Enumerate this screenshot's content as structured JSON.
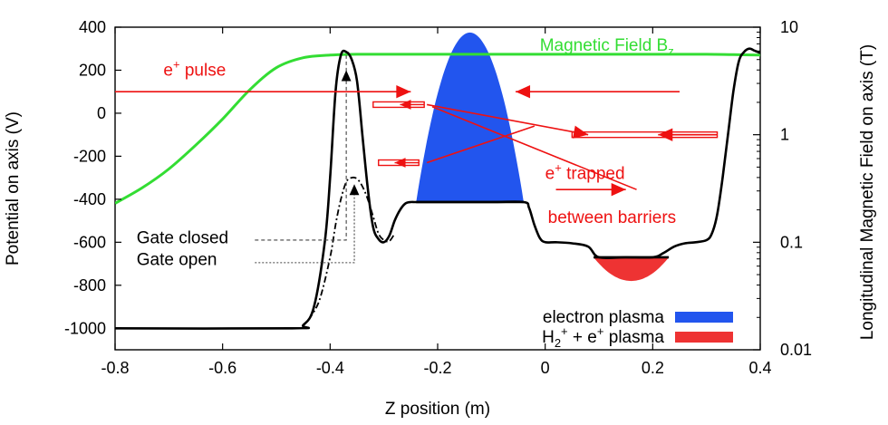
{
  "chart_data": {
    "type": "line",
    "xlabel": "Z position (m)",
    "ylabel": "Potential on axis (V)",
    "y2label": "Longitudinal Magnetic Field on axis (T)",
    "xlim": [
      -0.8,
      0.4
    ],
    "ylim": [
      -1100,
      400
    ],
    "y2lim": [
      0.01,
      10
    ],
    "y2scale": "log",
    "x_ticks": [
      -0.8,
      -0.6,
      -0.4,
      -0.2,
      0,
      0.2,
      0.4
    ],
    "x_tick_labels": [
      "-0.8",
      "-0.6",
      "-0.4",
      "-0.2",
      "0",
      "0.2",
      "0.4"
    ],
    "y_ticks": [
      400,
      200,
      0,
      -200,
      -400,
      -600,
      -800,
      -1000
    ],
    "y_tick_labels": [
      "400",
      "200",
      "0",
      "-200",
      "-400",
      "-600",
      "-800",
      "-1000"
    ],
    "y2_ticks": [
      10,
      1,
      0.1,
      0.01
    ],
    "y2_tick_labels": [
      "10",
      "1",
      "0.1",
      "0.01"
    ],
    "series": [
      {
        "name": "Potential (gate closed)",
        "color": "#000000",
        "style": "solid",
        "x": [
          -0.8,
          -0.47,
          -0.45,
          -0.43,
          -0.41,
          -0.4,
          -0.39,
          -0.38,
          -0.37,
          -0.36,
          -0.35,
          -0.34,
          -0.33,
          -0.32,
          -0.31,
          -0.3,
          -0.29,
          -0.28,
          -0.27,
          -0.26,
          -0.25,
          -0.24,
          -0.2,
          -0.1,
          -0.04,
          -0.03,
          -0.02,
          -0.01,
          0.0,
          0.02,
          0.05,
          0.08,
          0.1,
          0.15,
          0.2,
          0.22,
          0.24,
          0.26,
          0.28,
          0.3,
          0.31,
          0.32,
          0.33,
          0.34,
          0.35,
          0.36,
          0.37,
          0.38,
          0.39,
          0.4
        ],
        "y": [
          -1000,
          -1000,
          -985,
          -900,
          -600,
          -300,
          100,
          270,
          285,
          250,
          150,
          -100,
          -350,
          -530,
          -585,
          -600,
          -570,
          -500,
          -450,
          -420,
          -413,
          -413,
          -413,
          -413,
          -413,
          -440,
          -520,
          -580,
          -600,
          -600,
          -605,
          -620,
          -670,
          -670,
          -670,
          -650,
          -620,
          -605,
          -600,
          -590,
          -560,
          -470,
          -300,
          -100,
          100,
          240,
          285,
          300,
          290,
          280
        ]
      },
      {
        "name": "Potential (gate open)",
        "color": "#000000",
        "style": "dashdot",
        "x": [
          -0.44,
          -0.42,
          -0.4,
          -0.39,
          -0.38,
          -0.37,
          -0.36,
          -0.35,
          -0.34,
          -0.33,
          -0.32,
          -0.31,
          -0.3,
          -0.29,
          -0.28
        ],
        "y": [
          -960,
          -870,
          -670,
          -520,
          -400,
          -320,
          -300,
          -305,
          -340,
          -400,
          -480,
          -560,
          -590,
          -595,
          -560
        ]
      },
      {
        "name": "Magnetic Field B_z",
        "color": "#33dd33",
        "style": "solid",
        "axis": "y2",
        "x": [
          -0.8,
          -0.75,
          -0.7,
          -0.65,
          -0.6,
          -0.55,
          -0.5,
          -0.45,
          -0.4,
          -0.35,
          -0.3,
          -0.2,
          0.0,
          0.2,
          0.3,
          0.35,
          0.4
        ],
        "y": [
          0.23,
          0.32,
          0.48,
          0.8,
          1.4,
          2.6,
          4.2,
          5.2,
          5.5,
          5.6,
          5.6,
          5.6,
          5.6,
          5.6,
          5.6,
          5.55,
          5.5
        ]
      }
    ],
    "filled_regions": [
      {
        "name": "electron plasma",
        "color": "#2255ee",
        "x_range": [
          -0.24,
          -0.04
        ],
        "base": -413,
        "peak_x": -0.14,
        "peak": 375
      },
      {
        "name": "H2+ + e+ plasma",
        "color": "#ee3333",
        "x_range": [
          0.09,
          0.23
        ],
        "base": -670,
        "peak_x": 0.16,
        "peak": -780
      }
    ],
    "annotations": [
      {
        "kind": "text",
        "text": "Magnetic Field B",
        "sub": "z",
        "color": "#33dd33",
        "x": -0.01,
        "y": 290
      },
      {
        "kind": "text",
        "text": "e",
        "sup": "+",
        "rest": " pulse",
        "color": "#ee1111",
        "x": -0.71,
        "y": 175
      },
      {
        "kind": "text",
        "text": "e",
        "sup": "+",
        "rest": " trapped",
        "color": "#ee1111",
        "x": 0.0,
        "y": -305
      },
      {
        "kind": "text",
        "text": "between barriers",
        "color": "#ee1111",
        "x": 0.005,
        "y": -510
      },
      {
        "kind": "text",
        "text": "Gate closed",
        "color": "#000000",
        "x": -0.76,
        "y": -605
      },
      {
        "kind": "text",
        "text": "Gate open",
        "color": "#000000",
        "x": -0.76,
        "y": -705
      }
    ],
    "legend": {
      "position": "bottom-right",
      "entries": [
        {
          "label": "electron plasma",
          "color": "#2255ee"
        },
        {
          "label": "H",
          "sub": "2",
          "sup": "+",
          "rest": " + e",
          "sup2": "+",
          "rest2": " plasma",
          "color": "#ee3333"
        }
      ]
    }
  }
}
